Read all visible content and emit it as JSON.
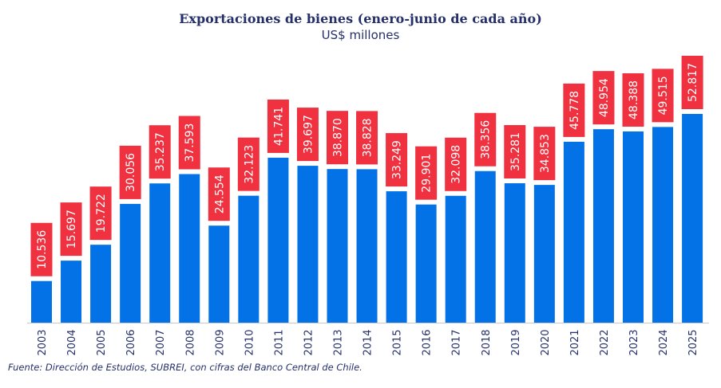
{
  "title": "Exportaciones de bienes (enero-junio de cada año)",
  "subtitle": "US$ millones",
  "source": "Fuente: Dirección de Estudios, SUBREI, con cifras del Banco Central de Chile.",
  "colors": {
    "bar": "#0272e6",
    "label_bg": "#f0313f",
    "label_text": "#ffffff",
    "axis_text": "#25306b"
  },
  "chart_data": {
    "type": "bar",
    "title": "Exportaciones de bienes (enero-junio de cada año)",
    "subtitle": "US$ millones",
    "xlabel": "",
    "ylabel": "",
    "grid": false,
    "categories": [
      "2003",
      "2004",
      "2005",
      "2006",
      "2007",
      "2008",
      "2009",
      "2010",
      "2011",
      "2012",
      "2013",
      "2014",
      "2015",
      "2016",
      "2017",
      "2018",
      "2019",
      "2020",
      "2021",
      "2022",
      "2023",
      "2024",
      "2025"
    ],
    "values": [
      10536,
      15697,
      19722,
      30056,
      35237,
      37593,
      24554,
      32123,
      41741,
      39697,
      38870,
      38828,
      33249,
      29901,
      32098,
      38356,
      35281,
      34853,
      45778,
      48954,
      48388,
      49515,
      52817
    ],
    "data_labels": [
      "10.536",
      "15.697",
      "19.722",
      "30.056",
      "35.237",
      "37.593",
      "24.554",
      "32.123",
      "41.741",
      "39.697",
      "38.870",
      "38.828",
      "33.249",
      "29.901",
      "32.098",
      "38.356",
      "35.281",
      "34.853",
      "45.778",
      "48.954",
      "48.388",
      "49.515",
      "52.817"
    ],
    "ylim": [
      0,
      55000
    ]
  }
}
